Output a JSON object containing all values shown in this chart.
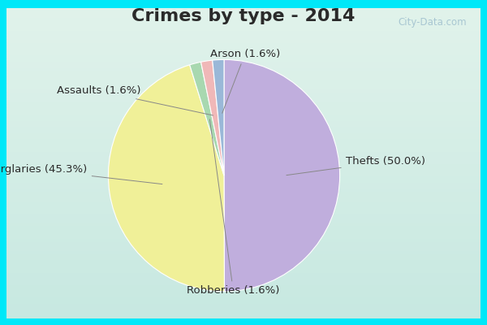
{
  "title": "Crimes by type - 2014",
  "slices": [
    {
      "label": "Thefts",
      "pct": 50.0,
      "color": "#c0aedd"
    },
    {
      "label": "Burglaries",
      "pct": 45.3,
      "color": "#f0f098"
    },
    {
      "label": "Robberies",
      "pct": 1.6,
      "color": "#a8d8b0"
    },
    {
      "label": "Assaults",
      "pct": 1.6,
      "color": "#f0b8b8"
    },
    {
      "label": "Arson",
      "pct": 1.6,
      "color": "#9ab8d8"
    }
  ],
  "border_color": "#00e8f8",
  "border_thickness": 8,
  "bg_color_top": "#c8e8e0",
  "bg_color_bottom": "#d8efe8",
  "title_fontsize": 16,
  "label_fontsize": 9.5,
  "title_color": "#2a2a2a",
  "label_color": "#2a2a2a",
  "watermark": "City-Data.com",
  "watermark_color": "#9bbccc"
}
